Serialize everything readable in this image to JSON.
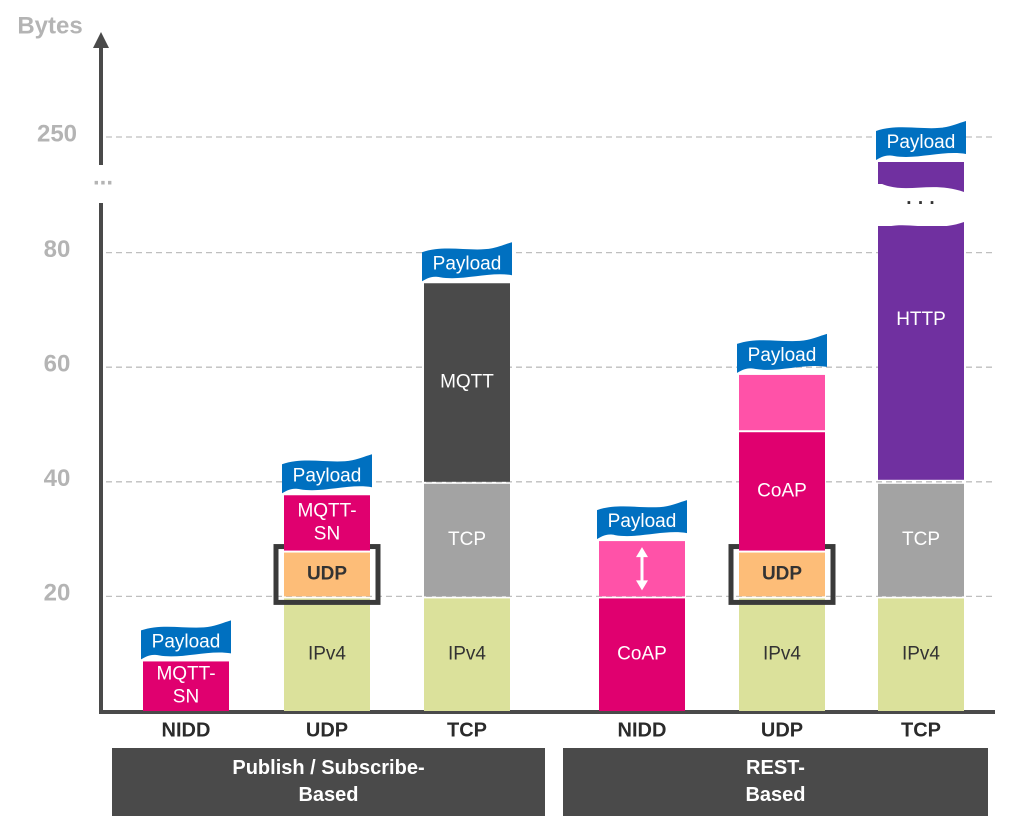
{
  "chart_data": {
    "type": "bar",
    "stacked": true,
    "axis_title": "Bytes",
    "y_ticks": [
      "20",
      "40",
      "60",
      "80",
      "250"
    ],
    "y_break": "...",
    "gridlines": true,
    "groups": [
      {
        "label_lines": [
          "Publish / Subscribe-",
          "Based"
        ]
      },
      {
        "label_lines": [
          "REST-",
          "Based"
        ]
      }
    ],
    "bars": [
      {
        "category": "NIDD",
        "group": 0,
        "segments": [
          {
            "label_lines": [
              "MQTT-",
              "SN"
            ],
            "from": 0,
            "to": 9,
            "color": "#e0006f"
          }
        ],
        "payload": "Payload"
      },
      {
        "category": "UDP",
        "group": 0,
        "segments": [
          {
            "label_lines": [
              "IPv4"
            ],
            "from": 0,
            "to": 20,
            "color": "#dbe19b"
          },
          {
            "label_lines": [
              "UDP"
            ],
            "from": 20,
            "to": 28,
            "color": "#fdbd78",
            "highlight": true
          },
          {
            "label_lines": [
              "MQTT-",
              "SN"
            ],
            "from": 28,
            "to": 38,
            "color": "#e0006f"
          }
        ],
        "payload": "Payload"
      },
      {
        "category": "TCP",
        "group": 0,
        "segments": [
          {
            "label_lines": [
              "IPv4"
            ],
            "from": 0,
            "to": 20,
            "color": "#dbe19b"
          },
          {
            "label_lines": [
              "TCP"
            ],
            "from": 20,
            "to": 40,
            "color": "#a3a3a3"
          },
          {
            "label_lines": [
              "MQTT"
            ],
            "from": 40,
            "to": 75,
            "color": "#4a4a4a"
          }
        ],
        "payload": "Payload"
      },
      {
        "category": "NIDD",
        "group": 1,
        "segments": [
          {
            "label_lines": [
              "CoAP"
            ],
            "from": 0,
            "to": 20,
            "color": "#e0006f"
          },
          {
            "label_lines": [
              ""
            ],
            "from": 20,
            "to": 30,
            "color": "#ff52a8",
            "arrow": true
          }
        ],
        "payload": "Payload"
      },
      {
        "category": "UDP",
        "group": 1,
        "segments": [
          {
            "label_lines": [
              "IPv4"
            ],
            "from": 0,
            "to": 20,
            "color": "#dbe19b"
          },
          {
            "label_lines": [
              "UDP"
            ],
            "from": 20,
            "to": 28,
            "color": "#fdbd78",
            "highlight": true
          },
          {
            "label_lines": [
              "CoAP"
            ],
            "from": 28,
            "to": 49,
            "color": "#e0006f"
          },
          {
            "label_lines": [
              ""
            ],
            "from": 49,
            "to": 59,
            "color": "#ff52a8"
          }
        ],
        "payload": "Payload"
      },
      {
        "category": "TCP",
        "group": 1,
        "segments": [
          {
            "label_lines": [
              "IPv4"
            ],
            "from": 0,
            "to": 20,
            "color": "#dbe19b"
          },
          {
            "label_lines": [
              "TCP"
            ],
            "from": 20,
            "to": 40,
            "color": "#a3a3a3"
          },
          {
            "label_lines": [
              "HTTP"
            ],
            "from": 40,
            "to": 250,
            "color": "#7030a0",
            "broken": true
          }
        ],
        "payload": "Payload"
      }
    ],
    "colors": {
      "payload": "#0070c0",
      "axis": "#4a4a4a",
      "grid": "#bfbfbf",
      "highlight_border": "#3a3a3a"
    }
  }
}
